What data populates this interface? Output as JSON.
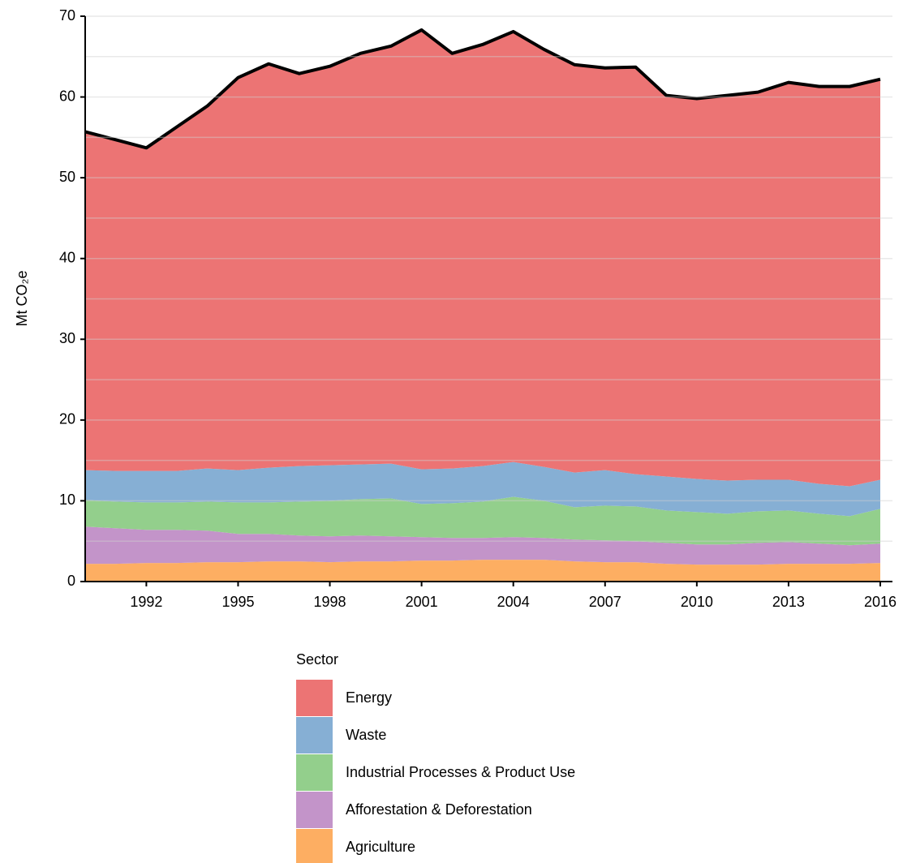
{
  "chart_data": {
    "type": "stacked_area",
    "y_label": "Mt CO₂e",
    "legend_title": "Sector",
    "x": [
      1990,
      1991,
      1992,
      1993,
      1994,
      1995,
      1996,
      1997,
      1998,
      1999,
      2000,
      2001,
      2002,
      2003,
      2004,
      2005,
      2006,
      2007,
      2008,
      2009,
      2010,
      2011,
      2012,
      2013,
      2014,
      2015,
      2016
    ],
    "xlim": [
      1990,
      2016
    ],
    "xticks": [
      1992,
      1995,
      1998,
      2001,
      2004,
      2007,
      2010,
      2013,
      2016
    ],
    "ylim": [
      0,
      70
    ],
    "yticks": [
      0,
      10,
      20,
      30,
      40,
      50,
      60,
      70
    ],
    "y_minor_grid": [
      5,
      15,
      25,
      35,
      45,
      55,
      65
    ],
    "grid": true,
    "outline_color": "#000000",
    "series": [
      {
        "name": "Agriculture",
        "color": "#fdae62",
        "values": [
          2.2,
          2.2,
          2.3,
          2.3,
          2.4,
          2.4,
          2.5,
          2.5,
          2.4,
          2.5,
          2.5,
          2.6,
          2.6,
          2.7,
          2.7,
          2.7,
          2.5,
          2.4,
          2.4,
          2.2,
          2.1,
          2.1,
          2.1,
          2.2,
          2.2,
          2.2,
          2.3
        ]
      },
      {
        "name": "Afforestation & Deforestation",
        "color": "#c394c9",
        "values": [
          4.6,
          4.4,
          4.1,
          4.1,
          3.9,
          3.5,
          3.4,
          3.2,
          3.2,
          3.2,
          3.1,
          2.9,
          2.8,
          2.7,
          2.8,
          2.7,
          2.7,
          2.7,
          2.6,
          2.6,
          2.5,
          2.5,
          2.7,
          2.7,
          2.5,
          2.3,
          2.4
        ]
      },
      {
        "name": "Industrial Processes & Product Use",
        "color": "#93cf8c",
        "values": [
          3.3,
          3.3,
          3.4,
          3.4,
          3.6,
          3.9,
          3.9,
          4.2,
          4.4,
          4.5,
          4.7,
          4.1,
          4.3,
          4.5,
          5.0,
          4.6,
          4.0,
          4.3,
          4.3,
          4.0,
          4.0,
          3.8,
          3.9,
          3.9,
          3.7,
          3.6,
          4.3
        ]
      },
      {
        "name": "Waste",
        "color": "#86afd4",
        "values": [
          3.7,
          3.8,
          3.9,
          3.9,
          4.1,
          4.0,
          4.3,
          4.4,
          4.4,
          4.3,
          4.3,
          4.3,
          4.3,
          4.4,
          4.3,
          4.2,
          4.3,
          4.4,
          4.0,
          4.2,
          4.1,
          4.1,
          3.9,
          3.8,
          3.7,
          3.7,
          3.6
        ]
      },
      {
        "name": "Energy",
        "color": "#ec7474",
        "values": [
          41.9,
          41.0,
          40.0,
          42.6,
          44.9,
          48.6,
          50.0,
          48.6,
          49.4,
          50.9,
          51.7,
          54.4,
          51.4,
          52.2,
          53.3,
          51.7,
          50.5,
          49.8,
          50.4,
          47.2,
          47.1,
          47.7,
          48.0,
          49.2,
          49.2,
          49.5,
          49.6
        ]
      }
    ]
  }
}
